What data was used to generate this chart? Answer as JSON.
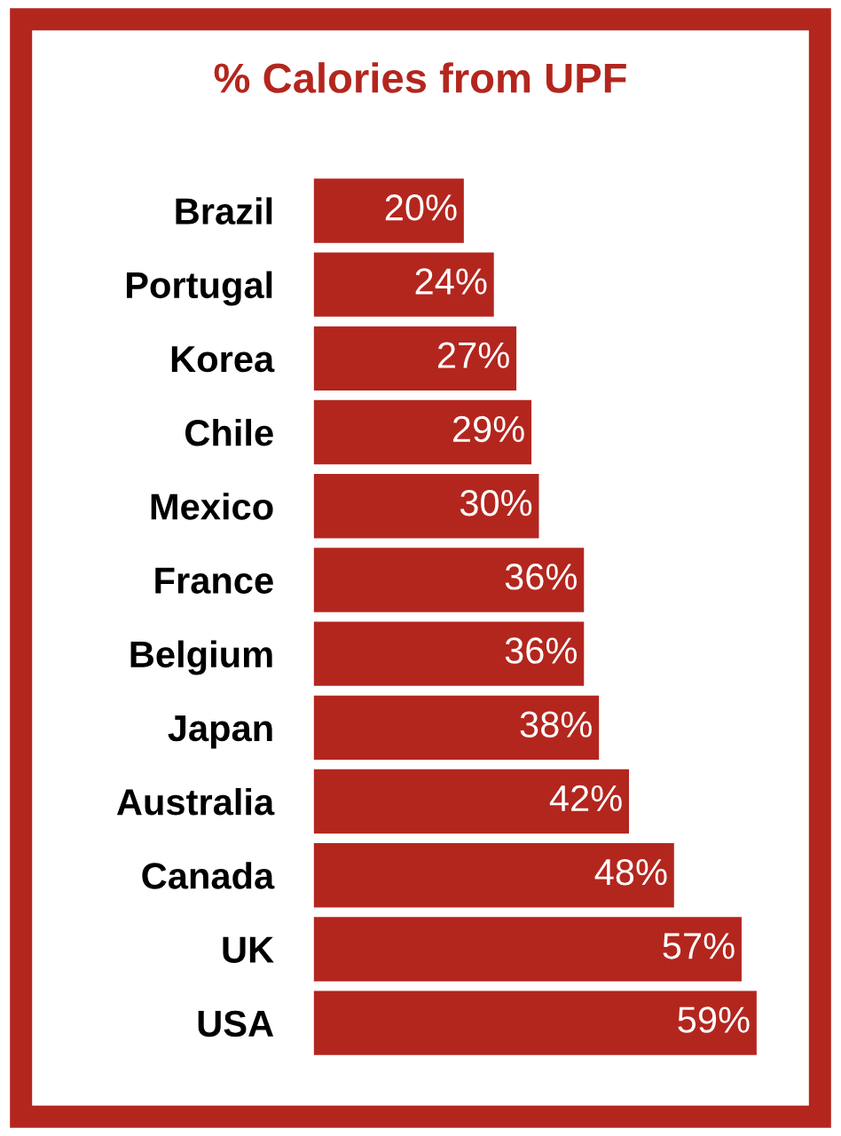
{
  "chart_data": {
    "type": "bar",
    "orientation": "horizontal",
    "title": "% Calories from UPF",
    "categories": [
      "Brazil",
      "Portugal",
      "Korea",
      "Chile",
      "Mexico",
      "France",
      "Belgium",
      "Japan",
      "Australia",
      "Canada",
      "UK",
      "USA"
    ],
    "values": [
      20,
      24,
      27,
      29,
      30,
      36,
      36,
      38,
      42,
      48,
      57,
      59
    ],
    "value_labels": [
      "20%",
      "24%",
      "27%",
      "29%",
      "30%",
      "36%",
      "36%",
      "38%",
      "42%",
      "48%",
      "57%",
      "59%"
    ],
    "color": "#b3261e",
    "tick_labels": "y",
    "grid": false,
    "legend": false
  }
}
